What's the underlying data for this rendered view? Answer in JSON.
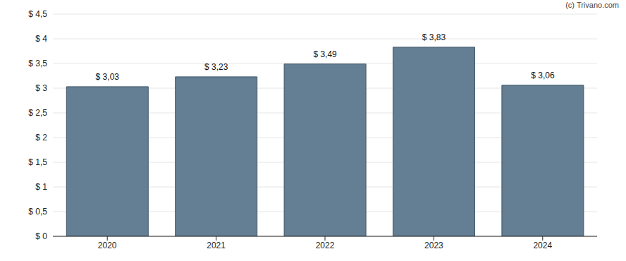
{
  "chart_data": {
    "type": "bar",
    "annotation": "(c) Trivano.com",
    "categories": [
      "2020",
      "2021",
      "2022",
      "2023",
      "2024"
    ],
    "values": [
      3.03,
      3.23,
      3.49,
      3.83,
      3.06
    ],
    "value_labels": [
      "$ 3,03",
      "$ 3,23",
      "$ 3,49",
      "$ 3,83",
      "$ 3,06"
    ],
    "data_labels": true,
    "color": "#647f94",
    "ylim": [
      0,
      4.5
    ],
    "yticks": [
      {
        "value": 0,
        "label": "$ 0"
      },
      {
        "value": 0.5,
        "label": "$ 0,5"
      },
      {
        "value": 1,
        "label": "$ 1"
      },
      {
        "value": 1.5,
        "label": "$ 1,5"
      },
      {
        "value": 2,
        "label": "$ 2"
      },
      {
        "value": 2.5,
        "label": "$ 2,5"
      },
      {
        "value": 3,
        "label": "$ 3"
      },
      {
        "value": 3.5,
        "label": "$ 3,5"
      },
      {
        "value": 4,
        "label": "$ 4"
      },
      {
        "value": 4.5,
        "label": "$ 4,5"
      }
    ],
    "grid": true
  }
}
